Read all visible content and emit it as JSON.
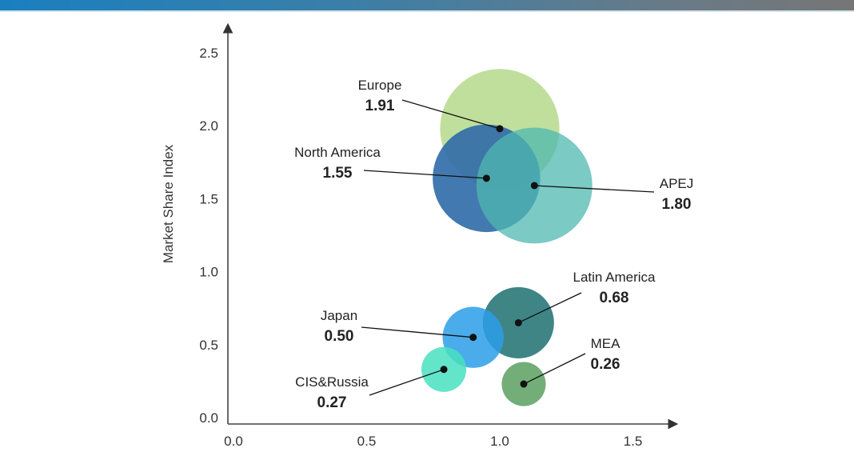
{
  "header": {
    "bar_colors": [
      "#1a7fbf",
      "#767676"
    ]
  },
  "chart_data": {
    "type": "scatter",
    "subtype": "bubble",
    "title": "",
    "xlabel": "",
    "ylabel": "Market Share Index",
    "xlim": [
      0,
      1.7
    ],
    "ylim": [
      0,
      2.6
    ],
    "xticks": [
      "0.0",
      "0.5",
      "1.0",
      "1.5"
    ],
    "yticks": [
      "0.0",
      "0.5",
      "1.0",
      "1.5",
      "2.0",
      "2.5"
    ],
    "grid": false,
    "legend": "none",
    "series": [
      {
        "name": "Europe",
        "label": "1.91",
        "x": 1.0,
        "y": 1.98,
        "size": 1.91,
        "color": "#b5d98c",
        "opacity": 0.85
      },
      {
        "name": "North America",
        "label": "1.55",
        "x": 0.95,
        "y": 1.64,
        "size": 1.55,
        "color": "#2f6aa8",
        "opacity": 0.9
      },
      {
        "name": "APEJ",
        "label": "1.80",
        "x": 1.13,
        "y": 1.59,
        "size": 1.8,
        "color": "#4fb8b0",
        "opacity": 0.75
      },
      {
        "name": "Latin America",
        "label": "0.68",
        "x": 1.07,
        "y": 0.65,
        "size": 0.68,
        "color": "#2a7878",
        "opacity": 0.9
      },
      {
        "name": "Japan",
        "label": "0.50",
        "x": 0.9,
        "y": 0.55,
        "size": 0.5,
        "color": "#2b9de8",
        "opacity": 0.85
      },
      {
        "name": "CIS&Russia",
        "label": "0.27",
        "x": 0.79,
        "y": 0.33,
        "size": 0.27,
        "color": "#48e0c0",
        "opacity": 0.85
      },
      {
        "name": "MEA",
        "label": "0.26",
        "x": 1.09,
        "y": 0.23,
        "size": 0.26,
        "color": "#5aa060",
        "opacity": 0.85
      }
    ]
  }
}
